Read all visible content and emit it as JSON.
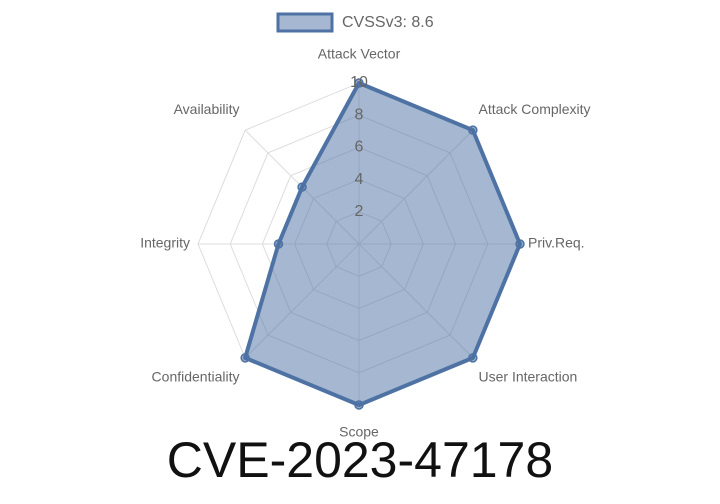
{
  "chart_data": {
    "type": "radar",
    "title": "CVE-2023-47178",
    "categories": [
      "Attack Vector",
      "Attack Complexity",
      "Priv.Req.",
      "User Interaction",
      "Scope",
      "Confidentiality",
      "Integrity",
      "Availability"
    ],
    "series": [
      {
        "name": "CVSSv3: 8.6",
        "color": "#4e72a4",
        "values": [
          10,
          10,
          10,
          10,
          10,
          10,
          5,
          5
        ]
      }
    ],
    "rlim": [
      0,
      10
    ],
    "rticks": [
      2,
      4,
      6,
      8,
      10
    ],
    "grid": true,
    "legend": "top"
  }
}
